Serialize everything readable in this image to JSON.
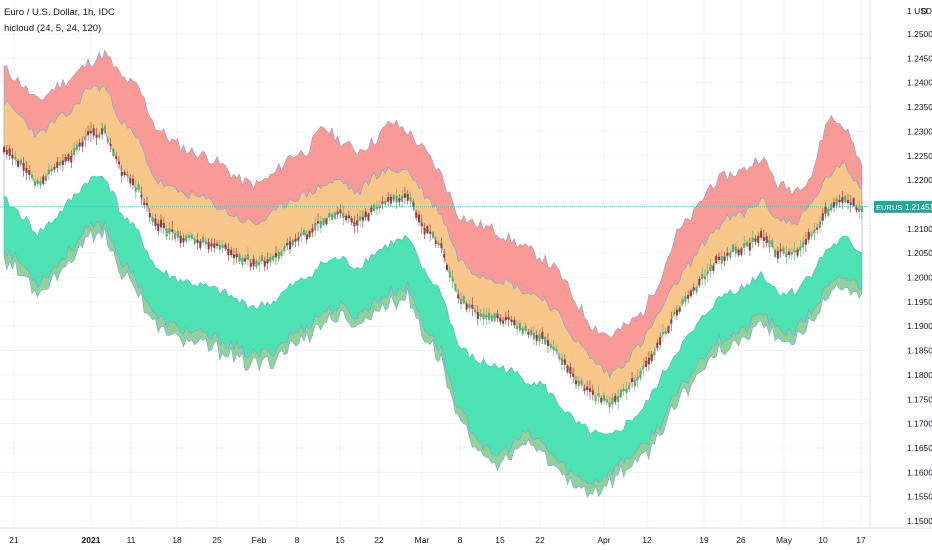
{
  "header": {
    "symbol_line": "Euro / U.S. Dollar, 1h, IDC",
    "indicator_line": "hicloud (24, 5, 24, 120)"
  },
  "price_axis": {
    "unit": "USD",
    "menu_glyph": "D",
    "ticks": [
      "1.25000",
      "1.24500",
      "1.24000",
      "1.23500",
      "1.23000",
      "1.22500",
      "1.22000",
      "1.21500",
      "1.21000",
      "1.20500",
      "1.20000",
      "1.19500",
      "1.19000",
      "1.18500",
      "1.18000",
      "1.17500",
      "1.17000",
      "1.16500",
      "1.16000",
      "1.15500",
      "1.15000"
    ],
    "price_tag": {
      "symbol": "EURUSD",
      "value": "1.21451"
    }
  },
  "time_axis": {
    "ticks": [
      {
        "label": "21"
      },
      {
        "label": "2021",
        "bold": true
      },
      {
        "label": "11"
      },
      {
        "label": "18"
      },
      {
        "label": "25"
      },
      {
        "label": "Feb"
      },
      {
        "label": "8"
      },
      {
        "label": "15"
      },
      {
        "label": "22"
      },
      {
        "label": "Mar"
      },
      {
        "label": "8"
      },
      {
        "label": "15"
      },
      {
        "label": "22"
      },
      {
        "label": "Apr"
      },
      {
        "label": "12"
      },
      {
        "label": "19"
      },
      {
        "label": "26"
      },
      {
        "label": "May"
      },
      {
        "label": "10"
      },
      {
        "label": "17"
      }
    ]
  },
  "colors": {
    "background": "#ffffff",
    "grid": "#f0f3fa",
    "red_cloud": "#f99a97",
    "orange_cloud": "#f9c78a",
    "teal_cloud": "#4ee3b3",
    "green_cloud": "#8fd39a",
    "candle_up": "#5aa96e",
    "candle_down": "#8c3a3a",
    "price_line": "#2ec4b6",
    "price_tag_bg": "#26a69a"
  },
  "chart_data": {
    "type": "area",
    "title": "Euro / U.S. Dollar, 1h, IDC",
    "ylim": [
      1.148,
      1.262
    ],
    "x": [
      "Dec 21",
      "Dec 23",
      "Dec 28",
      "Dec 30",
      "Jan 4",
      "Jan 6",
      "Jan 8",
      "Jan 12",
      "Jan 14",
      "Jan 18",
      "Jan 20",
      "Jan 22",
      "Jan 26",
      "Jan 28",
      "Feb 1",
      "Feb 3",
      "Feb 5",
      "Feb 9",
      "Feb 11",
      "Feb 15",
      "Feb 17",
      "Feb 19",
      "Feb 23",
      "Feb 25",
      "Mar 1",
      "Mar 3",
      "Mar 5",
      "Mar 9",
      "Mar 11",
      "Mar 15",
      "Mar 17",
      "Mar 19",
      "Mar 23",
      "Mar 25",
      "Mar 29",
      "Mar 31",
      "Apr 2",
      "Apr 6",
      "Apr 8",
      "Apr 12",
      "Apr 14",
      "Apr 16",
      "Apr 20",
      "Apr 22",
      "Apr 26",
      "Apr 28",
      "May 3",
      "May 5",
      "May 7",
      "May 11",
      "May 13",
      "May 17"
    ],
    "series": [
      {
        "name": "red",
        "values": [
          1.243,
          1.24,
          1.236,
          1.239,
          1.241,
          1.244,
          1.246,
          1.241,
          1.239,
          1.231,
          1.228,
          1.226,
          1.225,
          1.223,
          1.22,
          1.219,
          1.221,
          1.225,
          1.226,
          1.231,
          1.228,
          1.226,
          1.228,
          1.232,
          1.23,
          1.226,
          1.221,
          1.213,
          1.211,
          1.21,
          1.208,
          1.206,
          1.204,
          1.201,
          1.195,
          1.19,
          1.188,
          1.19,
          1.193,
          1.2,
          1.209,
          1.213,
          1.219,
          1.221,
          1.222,
          1.225,
          1.219,
          1.218,
          1.221,
          1.233,
          1.231,
          1.223
        ]
      },
      {
        "name": "orange",
        "values": [
          1.236,
          1.233,
          1.229,
          1.232,
          1.234,
          1.239,
          1.239,
          1.232,
          1.228,
          1.22,
          1.218,
          1.217,
          1.216,
          1.214,
          1.212,
          1.211,
          1.213,
          1.216,
          1.217,
          1.219,
          1.22,
          1.217,
          1.221,
          1.222,
          1.222,
          1.217,
          1.213,
          1.204,
          1.201,
          1.2,
          1.199,
          1.197,
          1.196,
          1.192,
          1.187,
          1.183,
          1.18,
          1.183,
          1.187,
          1.193,
          1.199,
          1.204,
          1.209,
          1.212,
          1.213,
          1.216,
          1.212,
          1.211,
          1.215,
          1.221,
          1.223,
          1.218
        ]
      },
      {
        "name": "close",
        "values": [
          1.226,
          1.223,
          1.219,
          1.222,
          1.225,
          1.229,
          1.23,
          1.222,
          1.218,
          1.211,
          1.209,
          1.208,
          1.207,
          1.206,
          1.204,
          1.203,
          1.204,
          1.207,
          1.209,
          1.212,
          1.213,
          1.211,
          1.214,
          1.216,
          1.217,
          1.21,
          1.206,
          1.196,
          1.193,
          1.192,
          1.191,
          1.189,
          1.188,
          1.184,
          1.179,
          1.176,
          1.174,
          1.177,
          1.181,
          1.187,
          1.193,
          1.197,
          1.202,
          1.205,
          1.206,
          1.209,
          1.205,
          1.205,
          1.209,
          1.214,
          1.216,
          1.214
        ]
      },
      {
        "name": "teal",
        "values": [
          1.216,
          1.213,
          1.209,
          1.212,
          1.216,
          1.22,
          1.221,
          1.213,
          1.209,
          1.202,
          1.2,
          1.199,
          1.198,
          1.197,
          1.195,
          1.194,
          1.195,
          1.198,
          1.2,
          1.203,
          1.204,
          1.202,
          1.205,
          1.207,
          1.208,
          1.201,
          1.197,
          1.186,
          1.183,
          1.182,
          1.181,
          1.179,
          1.178,
          1.174,
          1.17,
          1.168,
          1.167,
          1.17,
          1.173,
          1.179,
          1.185,
          1.189,
          1.194,
          1.197,
          1.198,
          1.201,
          1.197,
          1.197,
          1.201,
          1.206,
          1.208,
          1.205
        ]
      },
      {
        "name": "green",
        "values": [
          1.206,
          1.203,
          1.199,
          1.202,
          1.206,
          1.21,
          1.211,
          1.203,
          1.199,
          1.192,
          1.19,
          1.189,
          1.188,
          1.187,
          1.185,
          1.184,
          1.185,
          1.188,
          1.19,
          1.193,
          1.194,
          1.192,
          1.195,
          1.197,
          1.198,
          1.19,
          1.185,
          1.173,
          1.168,
          1.163,
          1.165,
          1.168,
          1.166,
          1.162,
          1.159,
          1.158,
          1.16,
          1.163,
          1.165,
          1.17,
          1.176,
          1.181,
          1.186,
          1.188,
          1.189,
          1.193,
          1.189,
          1.189,
          1.193,
          1.198,
          1.2,
          1.198
        ]
      }
    ]
  }
}
